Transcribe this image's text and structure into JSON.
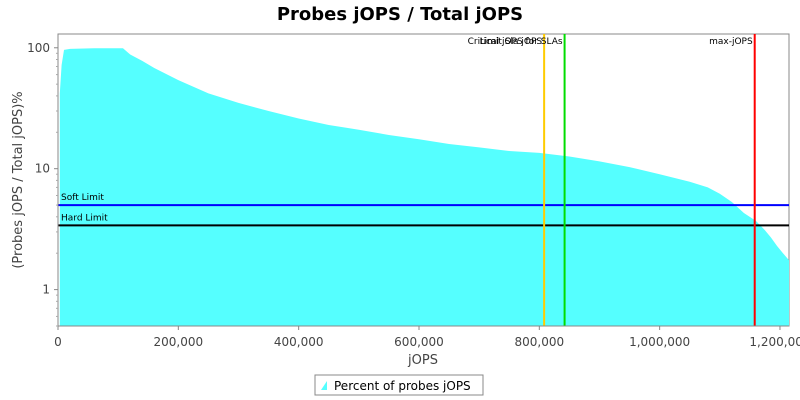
{
  "chart_data": {
    "type": "area",
    "title": "Probes jOPS / Total jOPS",
    "xlabel": "jOPS",
    "ylabel": "(Probes jOPS / Total jOPS)%",
    "xlim": [
      0,
      1215000
    ],
    "ylim": [
      0.5,
      130
    ],
    "yscale": "log",
    "grid": false,
    "legend_position": "bottom",
    "x_ticks": [
      0,
      200000,
      400000,
      600000,
      800000,
      1000000,
      1200000
    ],
    "x_tick_labels": [
      "0",
      "200,000",
      "400,000",
      "600,000",
      "800,000",
      "1,000,000",
      "1,200,000"
    ],
    "y_ticks": [
      1,
      10,
      100
    ],
    "y_tick_labels": [
      "1",
      "10",
      "100"
    ],
    "series": [
      {
        "name": "Percent of probes jOPS",
        "color": "#55ffff",
        "x": [
          3000,
          6000,
          10000,
          20000,
          60000,
          108000,
          120000,
          140000,
          160000,
          200000,
          250000,
          300000,
          350000,
          400000,
          450000,
          500000,
          550000,
          600000,
          650000,
          700000,
          750000,
          800000,
          850000,
          900000,
          950000,
          1000000,
          1050000,
          1080000,
          1100000,
          1120000,
          1140000,
          1160000,
          1175000,
          1185000,
          1195000,
          1205000,
          1215000
        ],
        "values": [
          42,
          72,
          96,
          98,
          99,
          99,
          88,
          78,
          68,
          54,
          42,
          35,
          30,
          26,
          23,
          21,
          19,
          17.5,
          16,
          15,
          14,
          13.5,
          12.6,
          11.5,
          10.3,
          9,
          7.8,
          7,
          6.2,
          5.3,
          4.3,
          3.7,
          3.1,
          2.7,
          2.3,
          2.0,
          1.75
        ]
      }
    ],
    "vertical_markers": [
      {
        "label": "Limit Sla jOPS",
        "x": 808000,
        "color": "#ffcc00"
      },
      {
        "label": "Critical jOPS for SLAs",
        "x": 842000,
        "color": "#00dd00"
      },
      {
        "label": "max-jOPS",
        "x": 1158000,
        "color": "#ff0000"
      }
    ],
    "horizontal_lines": [
      {
        "label": "Soft Limit",
        "y": 5,
        "color": "#0000ff"
      },
      {
        "label": "Hard Limit",
        "y": 3.4,
        "color": "#000000"
      }
    ]
  }
}
